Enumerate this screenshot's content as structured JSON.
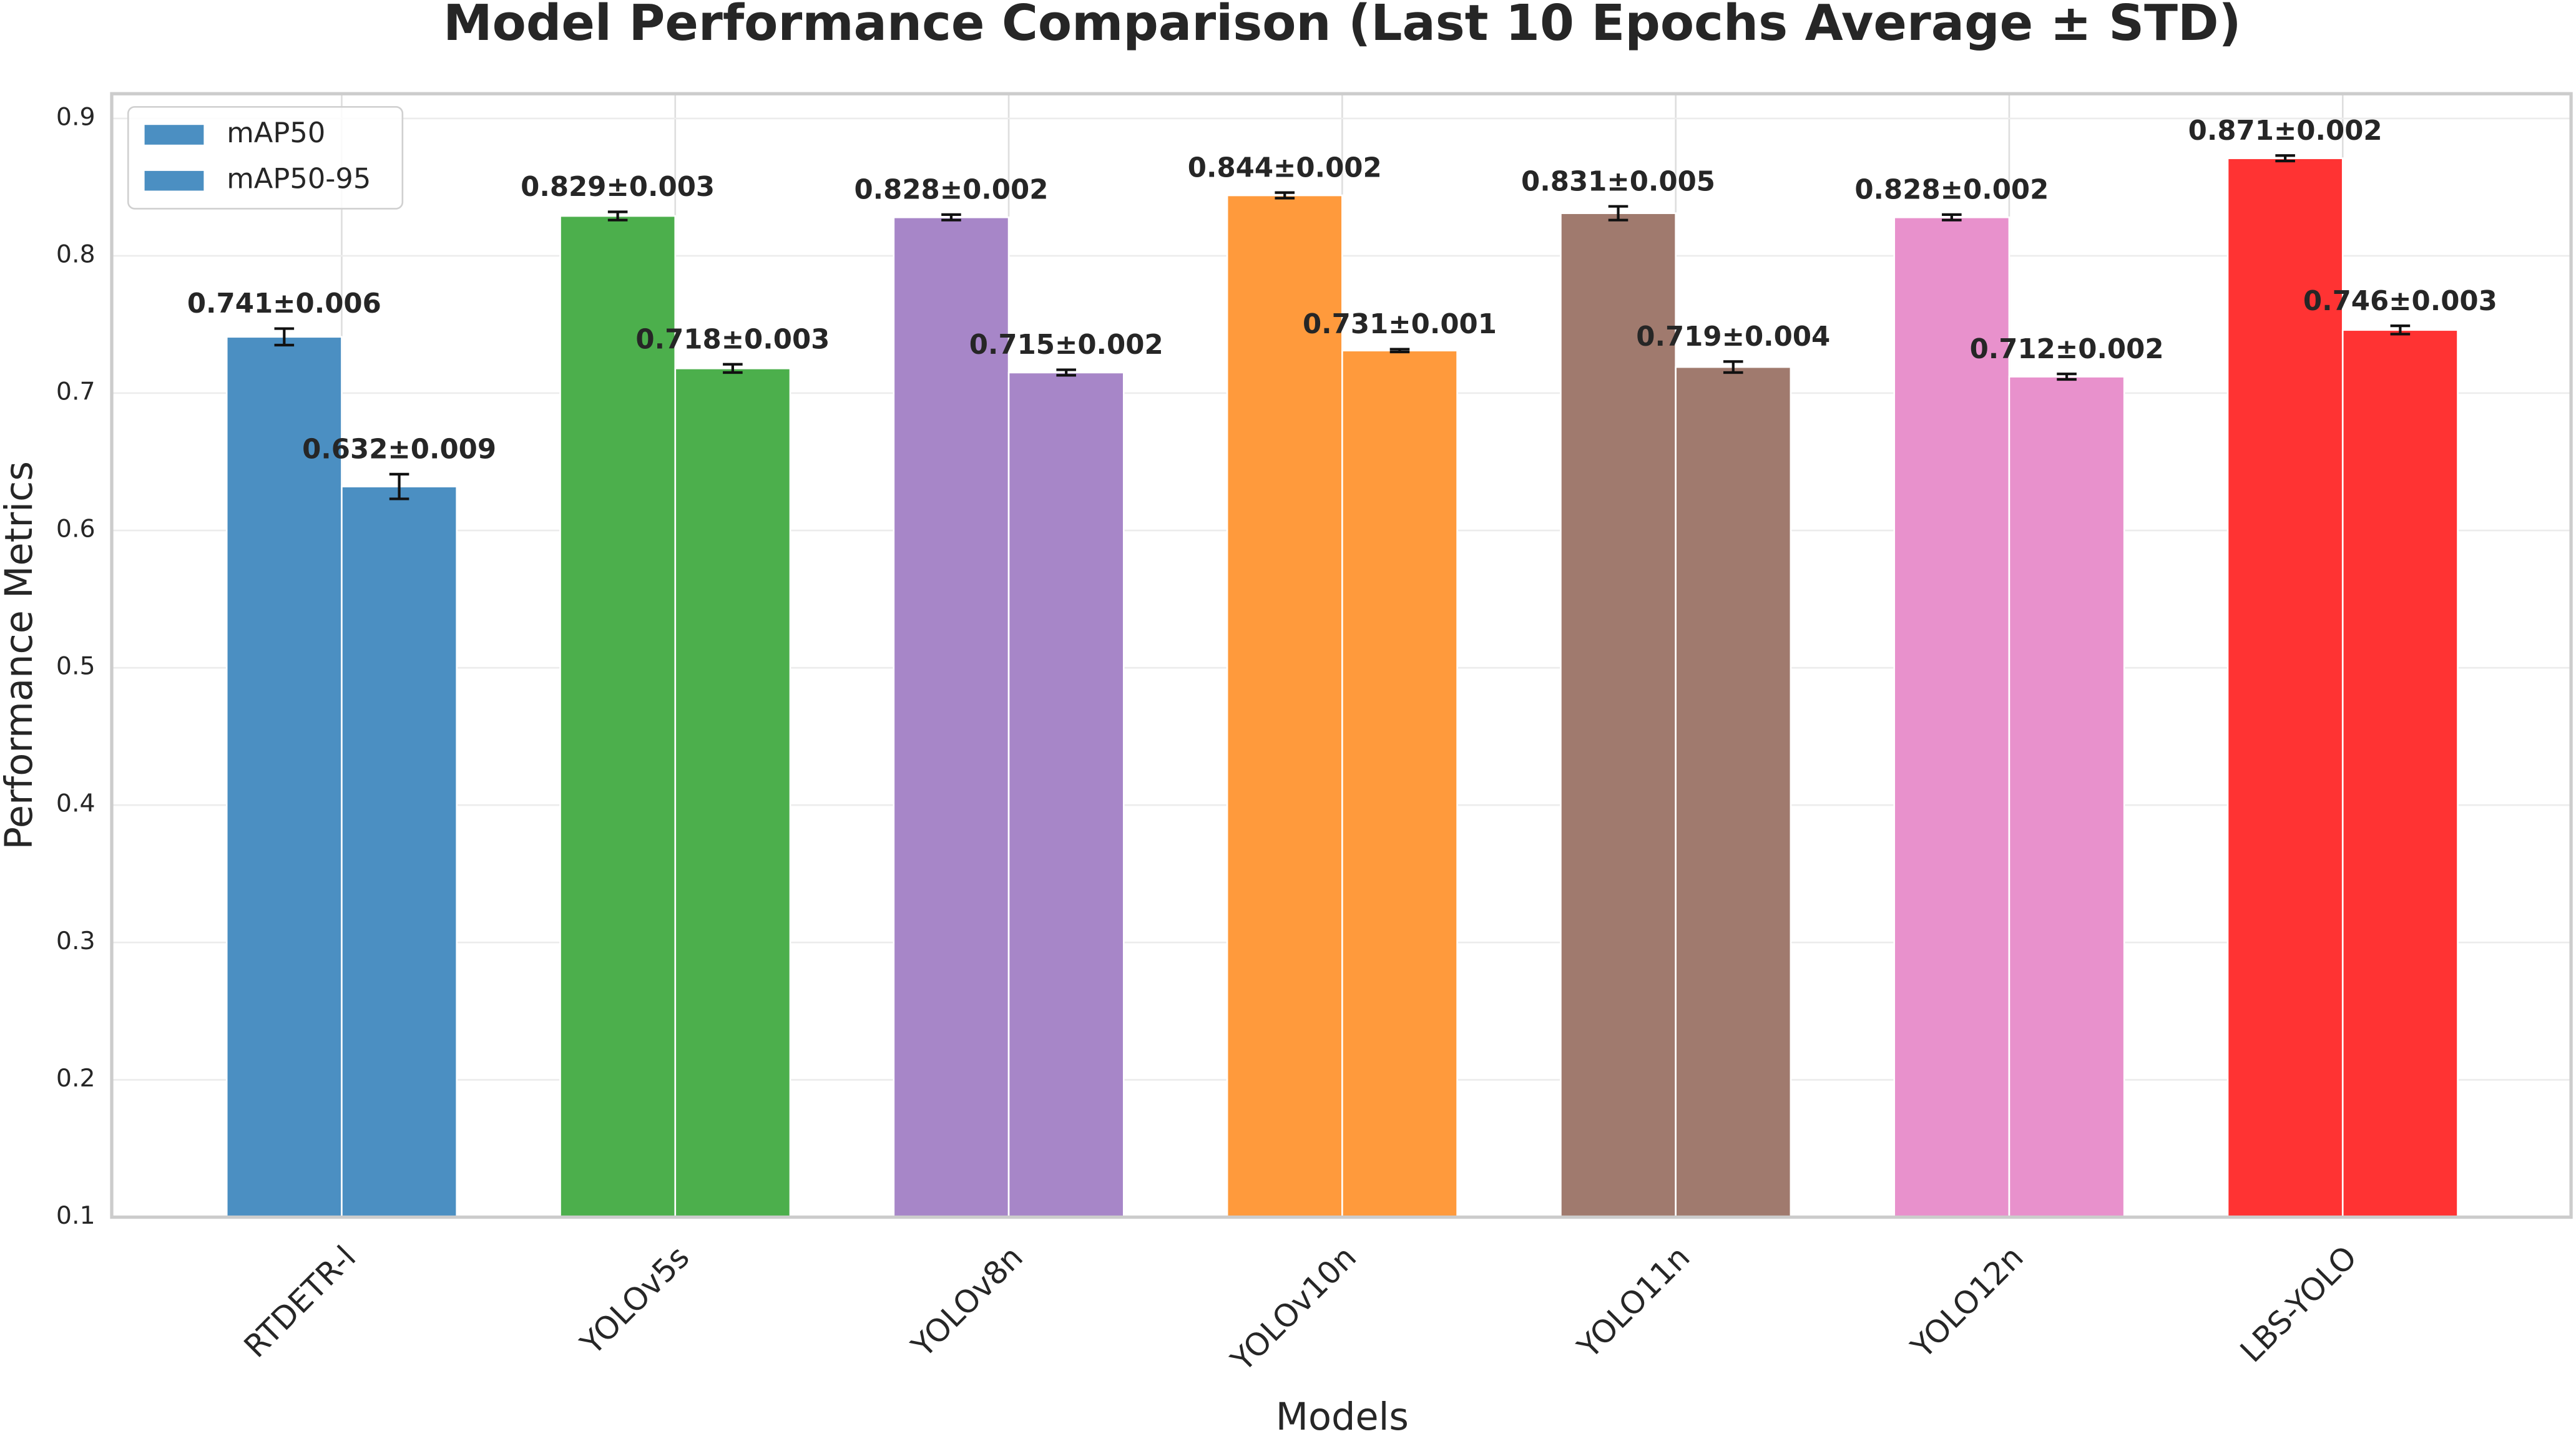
{
  "chart_data": {
    "type": "bar",
    "title": "Model Performance Comparison (Last 10 Epochs Average ± STD)",
    "x_label": "Models",
    "y_label": "Performance Metrics",
    "categories": [
      "RTDETR-l",
      "YOLOv5s",
      "YOLOv8n",
      "YOLOv10n",
      "YOLO11n",
      "YOLO12n",
      "LBS-YOLO"
    ],
    "colors": [
      "#4b8fc2",
      "#4caf4c",
      "#a786c8",
      "#ff9a3c",
      "#a07a6e",
      "#e891cc",
      "#ff3333"
    ],
    "series": [
      {
        "name": "mAP50",
        "color": "#4b8fc2",
        "values": [
          0.741,
          0.829,
          0.828,
          0.844,
          0.831,
          0.828,
          0.871
        ],
        "errors": [
          0.006,
          0.003,
          0.002,
          0.002,
          0.005,
          0.002,
          0.002
        ],
        "value_labels": [
          "0.741±0.006",
          "0.829±0.003",
          "0.828±0.002",
          "0.844±0.002",
          "0.831±0.005",
          "0.828±0.002",
          "0.871±0.002"
        ]
      },
      {
        "name": "mAP50-95",
        "color": "#4b8fc2",
        "values": [
          0.632,
          0.718,
          0.715,
          0.731,
          0.719,
          0.712,
          0.746
        ],
        "errors": [
          0.009,
          0.003,
          0.002,
          0.001,
          0.004,
          0.002,
          0.003
        ],
        "value_labels": [
          "0.632±0.009",
          "0.718±0.003",
          "0.715±0.002",
          "0.731±0.001",
          "0.719±0.004",
          "0.712±0.002",
          "0.746±0.003"
        ]
      }
    ],
    "ylim": [
      0.1,
      0.918
    ],
    "yticks": [
      0.1,
      0.2,
      0.3,
      0.4,
      0.5,
      0.6,
      0.7,
      0.8,
      0.9
    ],
    "grid": true,
    "legend": "upper left"
  }
}
